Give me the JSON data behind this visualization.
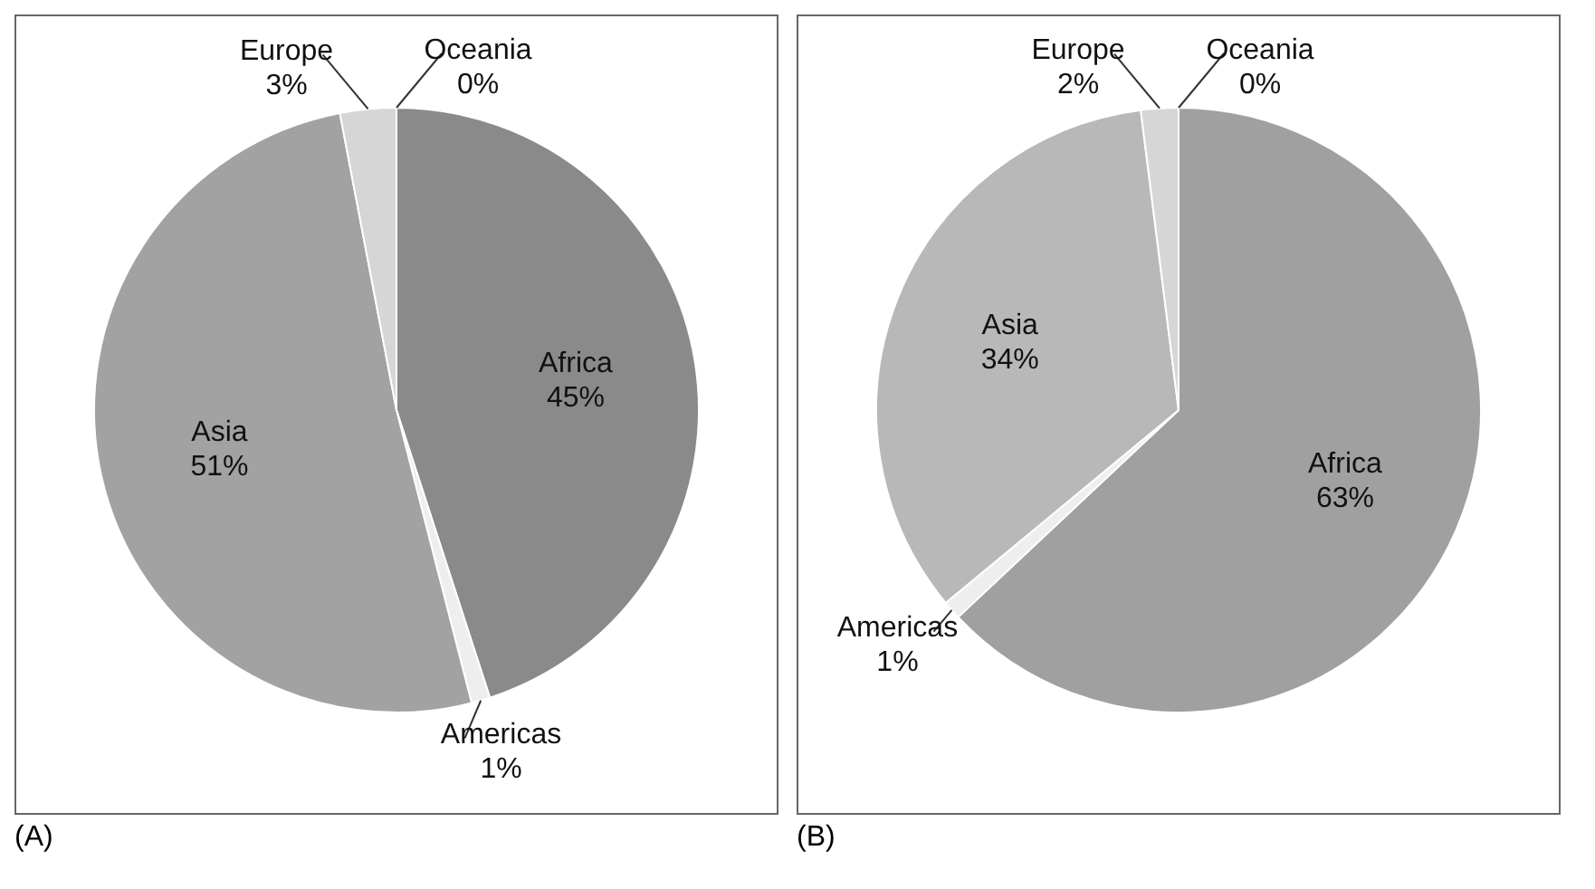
{
  "chart_data": [
    {
      "type": "pie",
      "categories": [
        "Africa",
        "Americas",
        "Asia",
        "Europe",
        "Oceania"
      ],
      "values": [
        45,
        1,
        51,
        3,
        0
      ],
      "value_labels": [
        "45%",
        "1%",
        "51%",
        "3%",
        "0%"
      ],
      "colors": [
        "#8a8a8a",
        "#eeeeee",
        "#a2a2a2",
        "#d6d6d6",
        "#e2e2e2"
      ],
      "annotations": [
        "(A)"
      ]
    },
    {
      "type": "pie",
      "categories": [
        "Africa",
        "Americas",
        "Asia",
        "Europe",
        "Oceania"
      ],
      "values": [
        63,
        1,
        34,
        2,
        0
      ],
      "value_labels": [
        "63%",
        "1%",
        "34%",
        "2%",
        "0%"
      ],
      "colors": [
        "#a0a0a0",
        "#eeeeee",
        "#b8b8b8",
        "#d6d6d6",
        "#e2e2e2"
      ],
      "annotations": [
        "(B)"
      ]
    }
  ]
}
